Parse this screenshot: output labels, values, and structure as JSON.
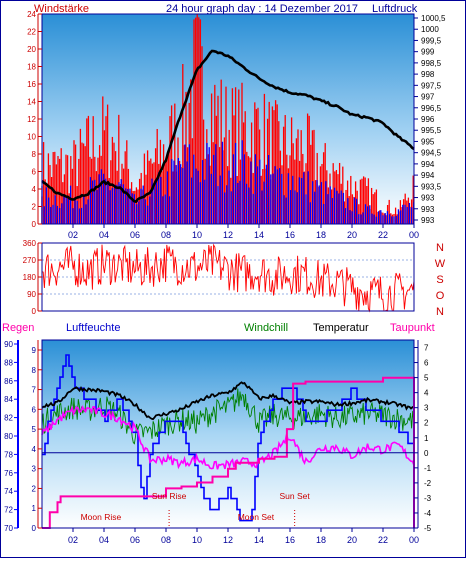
{
  "header": {
    "left_label": "Windstärke",
    "title": "24 hour graph day : 14 Dezember 2017",
    "right_label": "Luftdruck"
  },
  "colors": {
    "wind": "#ff0000",
    "gust": "#0000ff",
    "pressure": "#000000",
    "humidity": "#0000ff",
    "windchill": "#008000",
    "temperature": "#000000",
    "dewpoint": "#ff00ff",
    "rain": "#ff00aa",
    "axis_left": "#cc0000",
    "axis_blue": "#000099",
    "annotation": "#cc0000",
    "frame": "#000099"
  },
  "chart_data": [
    {
      "type": "line",
      "name": "wind-pressure",
      "x_ticks": [
        "02",
        "04",
        "06",
        "08",
        "10",
        "12",
        "14",
        "16",
        "18",
        "20",
        "22",
        "00"
      ],
      "left_ylabel": "Windstärke",
      "left_ticks": [
        0,
        2,
        4,
        6,
        8,
        10,
        12,
        14,
        16,
        18,
        20,
        22,
        24
      ],
      "left_ylim": [
        0,
        24
      ],
      "right_ylabel": "Luftdruck",
      "right_ticks": [
        "993",
        "993",
        "993",
        "993,5",
        "994",
        "994",
        "994,5",
        "995",
        "995,5",
        "996",
        "996,5",
        "997",
        "997,5",
        "998",
        "998,5",
        "999",
        "999,5",
        "1000",
        "1000,5"
      ],
      "pressure_ylim": [
        993,
        1000.5
      ],
      "xlim": [
        0,
        24
      ],
      "series": [
        {
          "key": "wind_bars",
          "values_x": [
            0,
            1,
            2,
            3,
            4,
            5,
            6,
            7,
            8,
            9,
            10,
            11,
            12,
            13,
            14,
            15,
            16,
            17,
            18,
            19,
            20,
            21,
            22,
            23,
            24
          ],
          "values_y": [
            9,
            9,
            9,
            12,
            14,
            12,
            6,
            9,
            12,
            16,
            24,
            18,
            15,
            15,
            15,
            13,
            12,
            12,
            9,
            8,
            6,
            5,
            3,
            2,
            6
          ]
        },
        {
          "key": "gust_bars",
          "values_x": [
            0,
            1,
            2,
            3,
            4,
            5,
            6,
            7,
            8,
            9,
            10,
            11,
            12,
            13,
            14,
            15,
            16,
            17,
            18,
            19,
            20,
            21,
            22,
            23,
            24
          ],
          "values_y": [
            4,
            4,
            4,
            5,
            6,
            6,
            3,
            5,
            6,
            9,
            9,
            9,
            9,
            9,
            8,
            7,
            7,
            6,
            5,
            4,
            3,
            2,
            2,
            2,
            3
          ]
        },
        {
          "key": "pressure",
          "values_x": [
            0,
            1,
            2,
            3,
            4,
            5,
            6,
            7,
            8,
            9,
            10,
            11,
            12,
            13,
            14,
            15,
            16,
            17,
            18,
            19,
            20,
            21,
            22,
            23,
            24
          ],
          "values_y": [
            994.5,
            994.1,
            993.9,
            994.1,
            994.5,
            994.3,
            993.8,
            994.1,
            995.3,
            997.0,
            998.5,
            999.2,
            999.0,
            998.6,
            998.2,
            997.9,
            997.7,
            997.6,
            997.4,
            997.2,
            996.9,
            996.8,
            996.6,
            996.1,
            995.7
          ]
        }
      ]
    },
    {
      "type": "line",
      "name": "wind-direction",
      "x_ticks": [
        "02",
        "04",
        "06",
        "08",
        "10",
        "12",
        "14",
        "16",
        "18",
        "20",
        "22",
        "00"
      ],
      "left_ticks": [
        0,
        90,
        180,
        270,
        360
      ],
      "right_labels": [
        "N",
        "W",
        "S",
        "O",
        "N"
      ],
      "ylim": [
        0,
        360
      ],
      "xlim": [
        0,
        24
      ],
      "series": [
        {
          "key": "direction",
          "values_x": [
            0,
            1,
            2,
            3,
            4,
            5,
            6,
            7,
            8,
            9,
            10,
            11,
            12,
            13,
            14,
            15,
            16,
            17,
            18,
            19,
            20,
            21,
            22,
            23,
            24
          ],
          "values_y": [
            220,
            230,
            240,
            210,
            250,
            240,
            220,
            230,
            260,
            240,
            230,
            250,
            220,
            200,
            210,
            180,
            200,
            190,
            160,
            150,
            120,
            100,
            90,
            100,
            110
          ]
        }
      ]
    },
    {
      "type": "line",
      "name": "temperature-humidity",
      "labels": {
        "rain": "Regen",
        "humidity": "Luftfeuchte",
        "windchill": "Windchill",
        "temperature": "Temperatur",
        "dewpoint": "Taupunkt"
      },
      "x_ticks": [
        "02",
        "04",
        "06",
        "08",
        "10",
        "12",
        "14",
        "16",
        "18",
        "20",
        "22",
        "00"
      ],
      "left_ticks": [
        0,
        1,
        2,
        3,
        4,
        5,
        6,
        7,
        8,
        9
      ],
      "left_ylim": [
        0,
        9
      ],
      "humidity_ticks": [
        70,
        72,
        74,
        76,
        78,
        80,
        82,
        84,
        86,
        88,
        90
      ],
      "humidity_ylim": [
        70,
        90
      ],
      "right_ticks": [
        -5,
        -4,
        -3,
        -2,
        -1,
        0,
        1,
        2,
        3,
        4,
        5,
        6,
        7
      ],
      "right_ylim": [
        -5,
        7.5
      ],
      "xlim": [
        0,
        24
      ],
      "annotations": {
        "moon_rise": "Moon Rise",
        "sun_rise": "Sun Rise",
        "moon_set": "Moon Set",
        "sun_set": "Sun Set"
      },
      "event_hours": {
        "moon_rise": 3.8,
        "sun_rise": 8.2,
        "moon_set": 13.8,
        "sun_set": 16.3
      },
      "series": [
        {
          "key": "humidity",
          "values_x": [
            0,
            1,
            1.5,
            2,
            3,
            4,
            5,
            6,
            6.5,
            7,
            8,
            9,
            10,
            10.5,
            11,
            12,
            13,
            13.5,
            14,
            15,
            16,
            17,
            18,
            19,
            20,
            21,
            22,
            23,
            24
          ],
          "values_y": [
            78,
            86,
            89,
            86,
            84,
            82,
            84,
            80,
            72,
            78,
            82,
            81,
            76,
            73,
            72,
            74,
            70.5,
            71,
            80,
            84,
            86,
            82,
            82,
            83,
            85,
            83,
            82,
            81,
            79
          ]
        },
        {
          "key": "temperature",
          "values_x": [
            0,
            1,
            2,
            3,
            4,
            5,
            6,
            7,
            8,
            9,
            10,
            11,
            12,
            13,
            14,
            15,
            16,
            17,
            18,
            19,
            20,
            21,
            22,
            23,
            24
          ],
          "values_y": [
            3.1,
            3.3,
            4.3,
            4.2,
            4.1,
            3.8,
            3.2,
            2.3,
            2.6,
            2.9,
            3.4,
            3.8,
            4.0,
            4.7,
            3.6,
            3.8,
            3.3,
            3.4,
            3.4,
            3.2,
            3.3,
            3.5,
            3.4,
            3.2,
            2.9
          ]
        },
        {
          "key": "windchill",
          "values_x": [
            0,
            1,
            2,
            3,
            4,
            5,
            6,
            7,
            8,
            9,
            10,
            11,
            12,
            13,
            14,
            15,
            16,
            17,
            18,
            19,
            20,
            21,
            22,
            23,
            24
          ],
          "values_y": [
            2.0,
            2.6,
            3.0,
            2.8,
            3.2,
            2.5,
            1.2,
            1.4,
            1.9,
            2.2,
            2.0,
            2.7,
            3.0,
            3.9,
            2.0,
            2.5,
            2.3,
            2.4,
            2.6,
            2.3,
            2.4,
            2.6,
            2.5,
            2.3,
            2.1
          ]
        },
        {
          "key": "dewpoint",
          "values_x": [
            0,
            1,
            2,
            3,
            4,
            5,
            6,
            7,
            8,
            9,
            10,
            11,
            12,
            13,
            14,
            15,
            16,
            17,
            18,
            19,
            20,
            21,
            22,
            23,
            24
          ],
          "values_y": [
            1.2,
            2.2,
            2.8,
            2.9,
            2.6,
            2.3,
            1.6,
            -0.5,
            -0.4,
            -0.7,
            -0.4,
            -0.9,
            -0.8,
            -0.6,
            -0.7,
            0.0,
            1.2,
            -0.6,
            0.3,
            0.4,
            -0.2,
            0.4,
            0.2,
            0.5,
            -0.7
          ]
        },
        {
          "key": "rain",
          "values_x": [
            0,
            0.5,
            1,
            1.2,
            2,
            6,
            7,
            8,
            9,
            10,
            11,
            12,
            12.5,
            14,
            15,
            15.8,
            16.2,
            17,
            20,
            22,
            23,
            23.9,
            24
          ],
          "values_y": [
            0,
            0.8,
            1.3,
            1.6,
            1.6,
            1.6,
            1.6,
            2.0,
            2.1,
            2.3,
            2.6,
            3.0,
            3.3,
            3.5,
            3.6,
            5.0,
            7.3,
            7.4,
            7.4,
            7.6,
            7.6,
            7.6,
            0
          ]
        }
      ]
    }
  ]
}
